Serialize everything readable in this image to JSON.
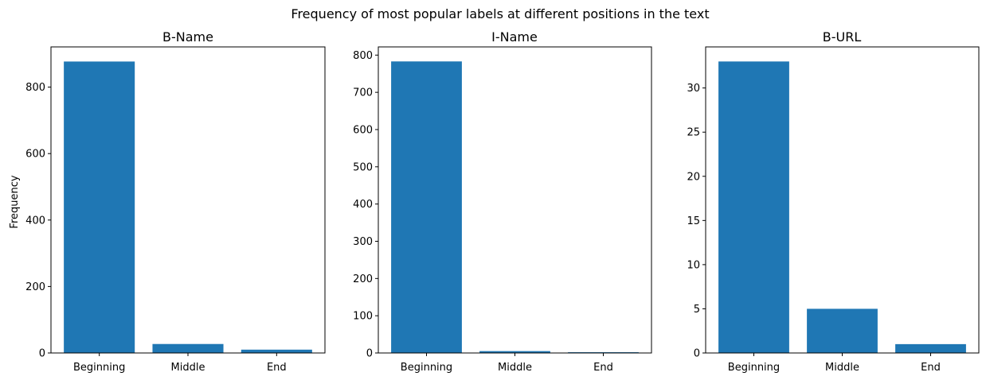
{
  "figure": {
    "suptitle": "Frequency of most popular labels at different positions in the text",
    "bar_color": "#1f77b4"
  },
  "chart_data": [
    {
      "type": "bar",
      "title": "B-Name",
      "categories": [
        "Beginning",
        "Middle",
        "End"
      ],
      "values": [
        877,
        27,
        10
      ],
      "ylabel": "Frequency",
      "ylim": [
        0,
        921
      ],
      "yticks": [
        0,
        200,
        400,
        600,
        800
      ]
    },
    {
      "type": "bar",
      "title": "I-Name",
      "categories": [
        "Beginning",
        "Middle",
        "End"
      ],
      "values": [
        783,
        5,
        2
      ],
      "ylabel": "",
      "ylim": [
        0,
        822
      ],
      "yticks": [
        0,
        100,
        200,
        300,
        400,
        500,
        600,
        700,
        800
      ]
    },
    {
      "type": "bar",
      "title": "B-URL",
      "categories": [
        "Beginning",
        "Middle",
        "End"
      ],
      "values": [
        33,
        5,
        1
      ],
      "ylabel": "",
      "ylim": [
        0,
        34.65
      ],
      "yticks": [
        0,
        5,
        10,
        15,
        20,
        25,
        30
      ]
    }
  ]
}
